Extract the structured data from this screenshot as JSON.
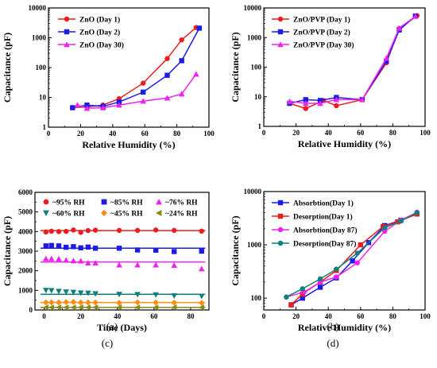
{
  "chart_data": [
    {
      "panel": "(a)",
      "type": "line",
      "xlabel": "Relative Humidity (%)",
      "ylabel": "Capacitance (pF)",
      "xlim": [
        0,
        100
      ],
      "ylim": [
        1,
        10000
      ],
      "yscale": "log",
      "xticks": [
        0,
        20,
        40,
        60,
        80,
        100
      ],
      "yticks": [
        1,
        10,
        100,
        1000,
        10000
      ],
      "legend_position": "top-left",
      "series": [
        {
          "name": "ZnO (Day 1)",
          "color": "#ee1c1c",
          "marker": "circle",
          "x": [
            15,
            24,
            34,
            44,
            59,
            74,
            83,
            92
          ],
          "y": [
            4.5,
            4.8,
            5.5,
            9,
            30,
            200,
            850,
            2200
          ]
        },
        {
          "name": "ZnO (Day 2)",
          "color": "#1c1ce6",
          "marker": "square",
          "x": [
            15,
            24,
            34,
            44,
            59,
            74,
            83,
            94
          ],
          "y": [
            4.5,
            5.5,
            5,
            7,
            15,
            55,
            170,
            2100
          ]
        },
        {
          "name": "ZnO (Day 30)",
          "color": "#ee22ee",
          "marker": "triangle",
          "x": [
            18,
            24,
            34,
            44,
            59,
            74,
            83,
            92
          ],
          "y": [
            5.5,
            4.3,
            4.5,
            5.5,
            7.5,
            9.5,
            13,
            60
          ]
        }
      ]
    },
    {
      "panel": "(b)",
      "type": "line",
      "xlabel": "Relative Humidity (%)",
      "ylabel": "Capacitance (pF)",
      "xlim": [
        0,
        100
      ],
      "ylim": [
        1,
        10000
      ],
      "yscale": "log",
      "xticks": [
        0,
        20,
        40,
        60,
        80,
        100
      ],
      "yticks": [
        1,
        10,
        100,
        1000,
        10000
      ],
      "legend_position": "top-left",
      "series": [
        {
          "name": "ZnO/PVP (Day 1)",
          "color": "#ee1c1c",
          "marker": "circle",
          "x": [
            16,
            26,
            37,
            45,
            61,
            76,
            84,
            95
          ],
          "y": [
            6,
            4,
            7.5,
            5,
            8,
            140,
            2000,
            5500
          ]
        },
        {
          "name": "ZnO/PVP (Day 2)",
          "color": "#1c1ce6",
          "marker": "square",
          "x": [
            16,
            26,
            35,
            45,
            61,
            76,
            84,
            94
          ],
          "y": [
            6,
            8,
            7.5,
            9.5,
            8,
            160,
            1800,
            5300
          ]
        },
        {
          "name": "ZnO/PVP (Day 30)",
          "color": "#ee22ee",
          "marker": "triangle",
          "x": [
            16,
            26,
            35,
            45,
            61,
            76,
            84,
            94
          ],
          "y": [
            7,
            6,
            6,
            8,
            8,
            200,
            2100,
            5200
          ]
        }
      ]
    },
    {
      "panel": "(c)",
      "type": "scatter",
      "xlabel": "Time (Days)",
      "ylabel": "Capacitance (pF)",
      "xlim": [
        -5,
        90
      ],
      "ylim": [
        0,
        6000
      ],
      "xticks": [
        0,
        20,
        40,
        60,
        80
      ],
      "yticks": [
        0,
        1000,
        2000,
        3000,
        4000,
        5000,
        6000
      ],
      "legend_position": "top",
      "x": [
        1,
        4,
        8,
        12,
        16,
        20,
        24,
        28,
        41,
        51,
        61,
        71,
        86
      ],
      "series": [
        {
          "name": "~95% RH",
          "color": "#ee1c1c",
          "marker": "circle",
          "fit": 4050,
          "y": [
            3980,
            4020,
            4000,
            4010,
            4080,
            3960,
            4050,
            4070,
            4060,
            4060,
            4080,
            4060,
            4020
          ]
        },
        {
          "name": "~85% RH",
          "color": "#1c1ce6",
          "marker": "square",
          "fit": 3150,
          "y": [
            3270,
            3290,
            3270,
            3200,
            3230,
            3170,
            3210,
            3150,
            3150,
            3060,
            3050,
            2980,
            3000
          ]
        },
        {
          "name": "~76% RH",
          "color": "#ee22ee",
          "marker": "triangle",
          "fit": 2450,
          "y": [
            2620,
            2620,
            2610,
            2540,
            2510,
            2500,
            2400,
            2400,
            2300,
            2300,
            2300,
            2280,
            2100
          ]
        },
        {
          "name": "~60% RH",
          "color": "#12807a",
          "marker": "triangle-down",
          "fit": 800,
          "y": [
            1000,
            990,
            950,
            920,
            900,
            870,
            860,
            830,
            800,
            790,
            770,
            720,
            700
          ]
        },
        {
          "name": "~45% RH",
          "color": "#ff8c1a",
          "marker": "diamond",
          "fit": 380,
          "y": [
            380,
            390,
            380,
            400,
            410,
            380,
            380,
            380,
            360,
            390,
            380,
            370,
            360
          ]
        },
        {
          "name": "~24% RH",
          "color": "#8a8a1a",
          "marker": "triangle-left",
          "fit": 130,
          "y": [
            130,
            130,
            130,
            130,
            130,
            130,
            130,
            130,
            130,
            130,
            130,
            130,
            130
          ]
        }
      ]
    },
    {
      "panel": "(d)",
      "type": "line",
      "xlabel": "Relative Humidity (%)",
      "ylabel": "Capacitance (pF)",
      "xlim": [
        0,
        100
      ],
      "ylim": [
        60,
        10000
      ],
      "yscale": "log",
      "xticks": [
        0,
        20,
        40,
        60,
        80,
        100
      ],
      "yticks": [
        100,
        1000,
        10000
      ],
      "legend_position": "top-left",
      "series": [
        {
          "name": "Absorbtion(Day 1)",
          "color": "#1c1ce6",
          "marker": "square",
          "x": [
            17,
            24,
            35,
            45,
            55,
            65,
            75,
            85,
            95
          ],
          "y": [
            75,
            100,
            160,
            240,
            500,
            1100,
            2300,
            2900,
            3800
          ]
        },
        {
          "name": "Desorption(Day 1)",
          "color": "#ee1c1c",
          "marker": "square",
          "x": [
            17,
            24,
            35,
            45,
            60,
            74,
            83,
            95
          ],
          "y": [
            75,
            120,
            200,
            330,
            1000,
            2200,
            2700,
            3800
          ]
        },
        {
          "name": "Absorbtion(Day 87)",
          "color": "#ee22ee",
          "marker": "circle",
          "x": [
            14,
            25,
            35,
            45,
            58,
            75,
            85,
            95
          ],
          "y": [
            105,
            130,
            200,
            250,
            460,
            1800,
            2900,
            4100
          ]
        },
        {
          "name": "Desorption(Day 87)",
          "color": "#12807a",
          "marker": "circle",
          "x": [
            14,
            24,
            35,
            45,
            58,
            75,
            85,
            95
          ],
          "y": [
            105,
            150,
            230,
            350,
            700,
            2100,
            2800,
            4000
          ]
        }
      ]
    }
  ]
}
